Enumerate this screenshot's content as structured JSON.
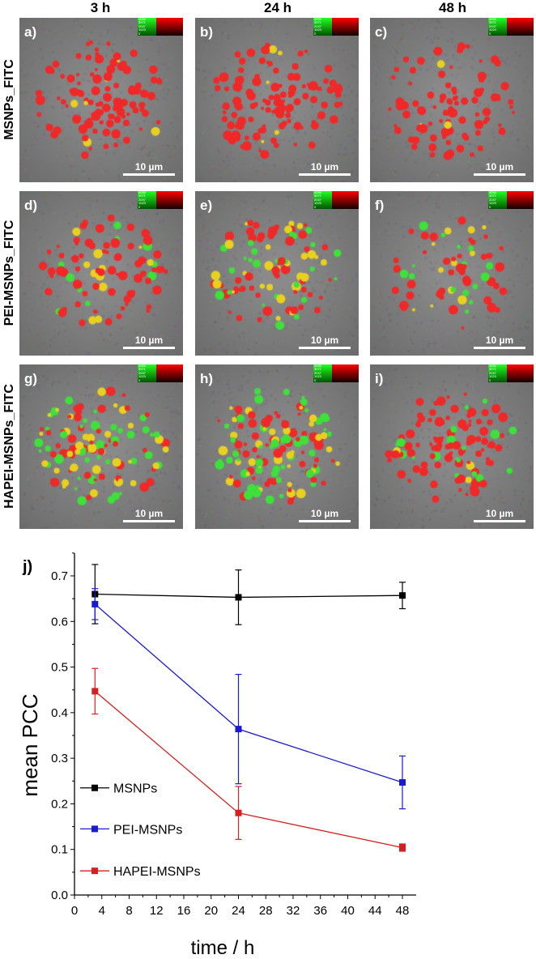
{
  "column_headers": [
    "3 h",
    "24 h",
    "48 h"
  ],
  "row_labels": [
    "MSNPs_FITC",
    "PEI-MSNPs_FITC",
    "HAPEI-MSNPs_FITC"
  ],
  "panels": [
    {
      "letter": "a)",
      "scale": "10 µm"
    },
    {
      "letter": "b)",
      "scale": "10 µm"
    },
    {
      "letter": "c)",
      "scale": "10 µm"
    },
    {
      "letter": "d)",
      "scale": "10 µm"
    },
    {
      "letter": "e)",
      "scale": "10 µm"
    },
    {
      "letter": "f)",
      "scale": "10 µm"
    },
    {
      "letter": "g)",
      "scale": "10 µm"
    },
    {
      "letter": "h)",
      "scale": "10 µm"
    },
    {
      "letter": "i)",
      "scale": "10 µm"
    }
  ],
  "inset_scale_values": [
    "4095",
    "3071",
    "2047",
    "1023",
    "0"
  ],
  "chart_data": {
    "type": "line",
    "panel_label": "j)",
    "xlabel": "time / h",
    "ylabel": "mean PCC",
    "xlim": [
      0,
      50
    ],
    "ylim": [
      0,
      0.75
    ],
    "xticks": [
      "0",
      "4",
      "8",
      "12",
      "16",
      "20",
      "24",
      "28",
      "32",
      "36",
      "40",
      "44",
      "48"
    ],
    "yticks": [
      "0.0",
      "0.1",
      "0.2",
      "0.3",
      "0.4",
      "0.5",
      "0.6",
      "0.7"
    ],
    "x": [
      3,
      24,
      48
    ],
    "legend_position": "bottom-left",
    "series": [
      {
        "name": "MSNPs",
        "color": "#000000",
        "values": [
          0.66,
          0.653,
          0.657
        ],
        "errors": [
          0.065,
          0.06,
          0.029
        ]
      },
      {
        "name": "PEI-MSNPs",
        "color": "#1a1ad0",
        "values": [
          0.638,
          0.364,
          0.247
        ],
        "errors": [
          0.034,
          0.12,
          0.058
        ]
      },
      {
        "name": "HAPEI-MSNPs",
        "color": "#d42020",
        "values": [
          0.447,
          0.18,
          0.104
        ],
        "errors": [
          0.05,
          0.058,
          0.008
        ]
      }
    ]
  }
}
